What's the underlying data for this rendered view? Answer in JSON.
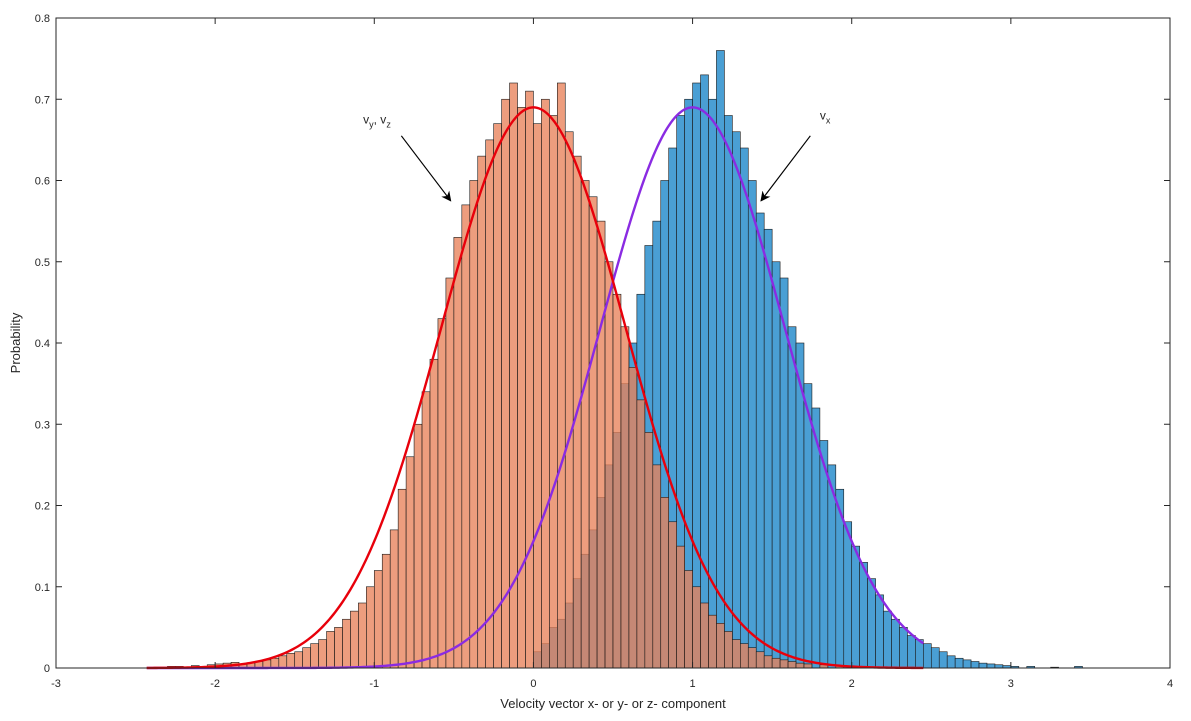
{
  "chart_data": {
    "type": "bar",
    "xlabel": "Velocity vector x- or y- or z- component",
    "ylabel": "Probability",
    "xlim": [
      -3,
      4
    ],
    "ylim": [
      0,
      0.8
    ],
    "xticks": [
      -3,
      -2,
      -1,
      0,
      1,
      2,
      3,
      4
    ],
    "yticks": [
      0,
      0.1,
      0.2,
      0.3,
      0.4,
      0.5,
      0.6,
      0.7,
      0.8
    ],
    "grid": false,
    "bin_width": 0.05,
    "series": [
      {
        "label_main": "v",
        "label_sub": "x",
        "color": "#4a9fd4",
        "fit_color": "#8a2be2",
        "fit_mean": 1.0,
        "fit_std": 0.58,
        "bins": [
          [
            0.0,
            0.02
          ],
          [
            0.05,
            0.03
          ],
          [
            0.1,
            0.05
          ],
          [
            0.15,
            0.06
          ],
          [
            0.2,
            0.08
          ],
          [
            0.25,
            0.11
          ],
          [
            0.3,
            0.14
          ],
          [
            0.35,
            0.17
          ],
          [
            0.4,
            0.21
          ],
          [
            0.45,
            0.25
          ],
          [
            0.5,
            0.29
          ],
          [
            0.55,
            0.35
          ],
          [
            0.6,
            0.4
          ],
          [
            0.65,
            0.46
          ],
          [
            0.7,
            0.52
          ],
          [
            0.75,
            0.55
          ],
          [
            0.8,
            0.6
          ],
          [
            0.85,
            0.64
          ],
          [
            0.9,
            0.68
          ],
          [
            0.95,
            0.7
          ],
          [
            1.0,
            0.72
          ],
          [
            1.05,
            0.73
          ],
          [
            1.1,
            0.7
          ],
          [
            1.15,
            0.76
          ],
          [
            1.2,
            0.68
          ],
          [
            1.25,
            0.66
          ],
          [
            1.3,
            0.64
          ],
          [
            1.35,
            0.6
          ],
          [
            1.4,
            0.56
          ],
          [
            1.45,
            0.54
          ],
          [
            1.5,
            0.5
          ],
          [
            1.55,
            0.48
          ],
          [
            1.6,
            0.42
          ],
          [
            1.65,
            0.4
          ],
          [
            1.7,
            0.35
          ],
          [
            1.75,
            0.32
          ],
          [
            1.8,
            0.28
          ],
          [
            1.85,
            0.25
          ],
          [
            1.9,
            0.22
          ],
          [
            1.95,
            0.18
          ],
          [
            2.0,
            0.15
          ],
          [
            2.05,
            0.13
          ],
          [
            2.1,
            0.11
          ],
          [
            2.15,
            0.09
          ],
          [
            2.2,
            0.07
          ],
          [
            2.25,
            0.06
          ],
          [
            2.3,
            0.05
          ],
          [
            2.35,
            0.04
          ],
          [
            2.4,
            0.035
          ],
          [
            2.45,
            0.03
          ],
          [
            2.5,
            0.025
          ],
          [
            2.55,
            0.02
          ],
          [
            2.6,
            0.015
          ],
          [
            2.65,
            0.012
          ],
          [
            2.7,
            0.01
          ],
          [
            2.75,
            0.008
          ],
          [
            2.8,
            0.006
          ],
          [
            2.85,
            0.005
          ],
          [
            2.9,
            0.004
          ],
          [
            2.95,
            0.003
          ],
          [
            3.0,
            0.002
          ],
          [
            3.1,
            0.002
          ],
          [
            3.25,
            0.001
          ],
          [
            3.4,
            0.002
          ]
        ]
      },
      {
        "label_main": "v",
        "label_sub1": "y",
        "label_mid": ", v",
        "label_sub2": "z",
        "color": "#e8825a",
        "fit_color": "#e8000b",
        "fit_mean": 0.0,
        "fit_std": 0.58,
        "bins": [
          [
            -2.3,
            0.002
          ],
          [
            -2.25,
            0.002
          ],
          [
            -2.15,
            0.003
          ],
          [
            -2.05,
            0.004
          ],
          [
            -2.0,
            0.005
          ],
          [
            -1.95,
            0.006
          ],
          [
            -1.9,
            0.007
          ],
          [
            -1.85,
            0.005
          ],
          [
            -1.8,
            0.006
          ],
          [
            -1.75,
            0.008
          ],
          [
            -1.7,
            0.01
          ],
          [
            -1.65,
            0.012
          ],
          [
            -1.6,
            0.015
          ],
          [
            -1.55,
            0.018
          ],
          [
            -1.5,
            0.02
          ],
          [
            -1.45,
            0.025
          ],
          [
            -1.4,
            0.03
          ],
          [
            -1.35,
            0.035
          ],
          [
            -1.3,
            0.045
          ],
          [
            -1.25,
            0.05
          ],
          [
            -1.2,
            0.06
          ],
          [
            -1.15,
            0.07
          ],
          [
            -1.1,
            0.08
          ],
          [
            -1.05,
            0.1
          ],
          [
            -1.0,
            0.12
          ],
          [
            -0.95,
            0.14
          ],
          [
            -0.9,
            0.17
          ],
          [
            -0.85,
            0.22
          ],
          [
            -0.8,
            0.26
          ],
          [
            -0.75,
            0.3
          ],
          [
            -0.7,
            0.34
          ],
          [
            -0.65,
            0.38
          ],
          [
            -0.6,
            0.43
          ],
          [
            -0.55,
            0.48
          ],
          [
            -0.5,
            0.53
          ],
          [
            -0.45,
            0.57
          ],
          [
            -0.4,
            0.6
          ],
          [
            -0.35,
            0.63
          ],
          [
            -0.3,
            0.65
          ],
          [
            -0.25,
            0.67
          ],
          [
            -0.2,
            0.7
          ],
          [
            -0.15,
            0.72
          ],
          [
            -0.1,
            0.69
          ],
          [
            -0.05,
            0.71
          ],
          [
            0.0,
            0.67
          ],
          [
            0.05,
            0.7
          ],
          [
            0.1,
            0.68
          ],
          [
            0.15,
            0.72
          ],
          [
            0.2,
            0.66
          ],
          [
            0.25,
            0.63
          ],
          [
            0.3,
            0.6
          ],
          [
            0.35,
            0.58
          ],
          [
            0.4,
            0.55
          ],
          [
            0.45,
            0.5
          ],
          [
            0.5,
            0.46
          ],
          [
            0.55,
            0.42
          ],
          [
            0.6,
            0.37
          ],
          [
            0.65,
            0.33
          ],
          [
            0.7,
            0.29
          ],
          [
            0.75,
            0.25
          ],
          [
            0.8,
            0.21
          ],
          [
            0.85,
            0.18
          ],
          [
            0.9,
            0.15
          ],
          [
            0.95,
            0.12
          ],
          [
            1.0,
            0.1
          ],
          [
            1.05,
            0.08
          ],
          [
            1.1,
            0.065
          ],
          [
            1.15,
            0.055
          ],
          [
            1.2,
            0.045
          ],
          [
            1.25,
            0.035
          ],
          [
            1.3,
            0.03
          ],
          [
            1.35,
            0.025
          ],
          [
            1.4,
            0.02
          ],
          [
            1.45,
            0.015
          ],
          [
            1.5,
            0.012
          ],
          [
            1.55,
            0.01
          ],
          [
            1.6,
            0.008
          ],
          [
            1.65,
            0.006
          ],
          [
            1.7,
            0.005
          ],
          [
            1.8,
            0.004
          ],
          [
            1.9,
            0.003
          ],
          [
            2.0,
            0.002
          ],
          [
            2.1,
            0.001
          ]
        ]
      }
    ],
    "annotations": [
      {
        "target_series": 1,
        "tail": [
          -0.83,
          0.655
        ],
        "head": [
          -0.52,
          0.575
        ]
      },
      {
        "target_series": 0,
        "tail": [
          1.74,
          0.655
        ],
        "head": [
          1.43,
          0.575
        ]
      }
    ]
  }
}
